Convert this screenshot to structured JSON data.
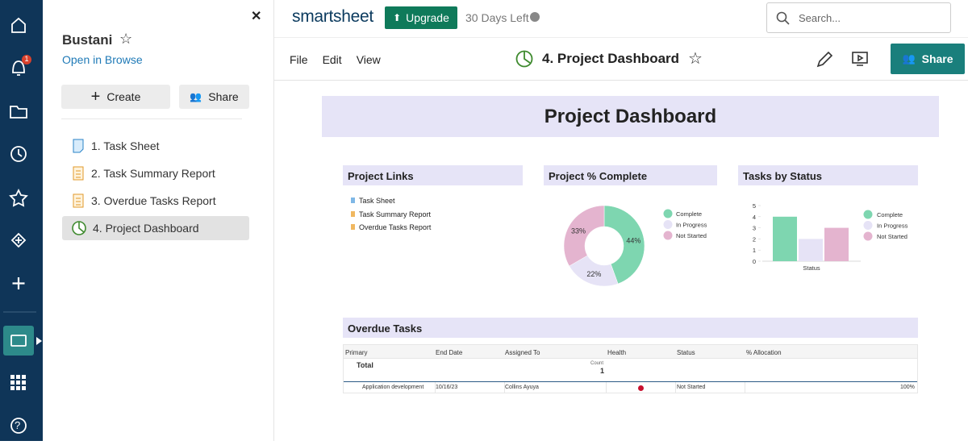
{
  "sidebar": {
    "notifications": 1
  },
  "panel": {
    "title": "Bustani",
    "open_link": "Open in Browse",
    "create": "Create",
    "share": "Share",
    "items": [
      "1. Task Sheet",
      "2. Task Summary Report",
      "3. Overdue Tasks Report",
      "4. Project Dashboard"
    ]
  },
  "topbar": {
    "logo": "smartsheet",
    "upgrade": "Upgrade",
    "trial": "30 Days Left",
    "search": "Search...",
    "share": "Share"
  },
  "menu": [
    "File",
    "Edit",
    "View"
  ],
  "sheet_title": "4. Project Dashboard",
  "dashboard": {
    "title": "Project Dashboard",
    "links": {
      "title": "Project Links",
      "items": [
        "Task Sheet",
        "Task Summary Report",
        "Overdue Tasks Report"
      ]
    },
    "overdue": {
      "title": "Overdue Tasks",
      "columns": [
        "Primary",
        "End Date",
        "Assigned To",
        "Health",
        "Status",
        "% Allocation"
      ],
      "total_label": "Total",
      "count_label": "Count",
      "count": 1,
      "row": {
        "primary": "Application development",
        "end_date": "10/16/23",
        "assigned_to": "Collins Ayuya",
        "status": "Not Started",
        "allocation": "100%"
      }
    }
  },
  "chart_data": [
    {
      "type": "pie",
      "title": "Project % Complete",
      "donut": true,
      "categories": [
        "Complete",
        "In Progress",
        "Not Started"
      ],
      "values": [
        44,
        22,
        33
      ],
      "value_labels": [
        "44%",
        "22%",
        "33%"
      ],
      "colors": [
        "#7ed6b0",
        "#e6e3f6",
        "#e4b4cf"
      ]
    },
    {
      "type": "bar",
      "title": "Tasks by Status",
      "categories": [
        "Status"
      ],
      "series": [
        {
          "name": "Complete",
          "color": "#7ed6b0",
          "values": [
            4
          ]
        },
        {
          "name": "In Progress",
          "color": "#e6e3f6",
          "values": [
            2
          ]
        },
        {
          "name": "Not Started",
          "color": "#e4b4cf",
          "values": [
            3
          ]
        }
      ],
      "ylim": [
        0,
        5
      ],
      "yticks": [
        0,
        1,
        2,
        3,
        4,
        5
      ]
    }
  ]
}
